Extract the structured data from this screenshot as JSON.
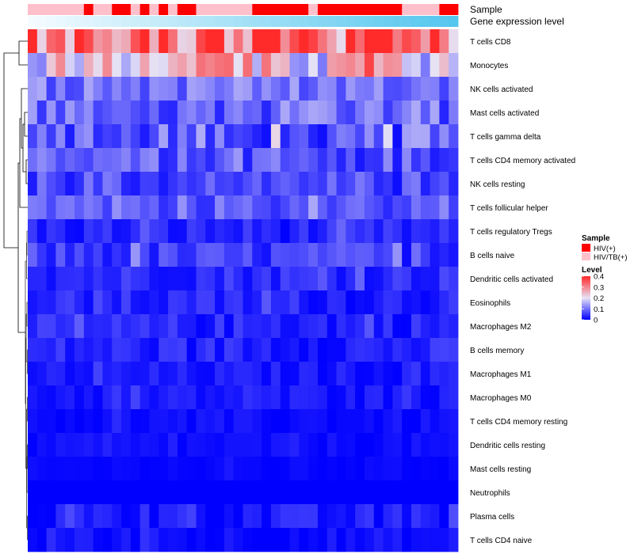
{
  "chart_data": {
    "type": "heatmap",
    "n_samples": 46,
    "annotations": [
      {
        "name": "Sample",
        "kind": "categorical"
      },
      {
        "name": "Gene expression level",
        "kind": "gradient",
        "colors": [
          "#f4fbff",
          "#55c6ee"
        ]
      }
    ],
    "sample_groups": [
      0,
      0,
      0,
      0,
      0,
      0,
      1,
      0,
      0,
      1,
      1,
      0,
      1,
      0,
      1,
      0,
      1,
      1,
      0,
      0,
      0,
      0,
      0,
      0,
      1,
      1,
      1,
      1,
      1,
      1,
      0,
      1,
      1,
      1,
      1,
      1,
      1,
      1,
      1,
      1,
      0,
      0,
      0,
      0,
      1,
      1
    ],
    "rows": [
      "T cells CD8",
      "Monocytes",
      "NK cells activated",
      "Mast cells activated",
      "T cells gamma delta",
      "T cells CD4 memory activated",
      "NK cells resting",
      "T cells follicular helper",
      "T cells regulatory  Tregs",
      "B cells naive",
      "Dendritic cells activated",
      "Eosinophils",
      "Macrophages M2",
      "B cells memory",
      "Macrophages M1",
      "Macrophages M0",
      "T cells CD4 memory resting",
      "Dendritic cells resting",
      "Mast cells resting",
      "Neutrophils",
      "Plasma cells",
      "T cells CD4 naive"
    ],
    "row_means": [
      0.32,
      0.22,
      0.1,
      0.09,
      0.08,
      0.08,
      0.06,
      0.07,
      0.03,
      0.05,
      0.04,
      0.03,
      0.03,
      0.03,
      0.02,
      0.02,
      0.01,
      0.01,
      0.005,
      0.0,
      0.02,
      0.01
    ],
    "row_spread": [
      0.12,
      0.12,
      0.05,
      0.06,
      0.07,
      0.06,
      0.05,
      0.04,
      0.03,
      0.04,
      0.03,
      0.03,
      0.03,
      0.03,
      0.02,
      0.02,
      0.015,
      0.012,
      0.008,
      0.0,
      0.03,
      0.02
    ],
    "legends": {
      "sample": {
        "title": "Sample",
        "entries": [
          {
            "label": "HIV(+)",
            "color": "#ff0000"
          },
          {
            "label": "HIV/TB(+)",
            "color": "#ffc0cb"
          }
        ]
      },
      "level": {
        "title": "Level",
        "ticks": [
          "0.4",
          "0.3",
          "0.2",
          "0.1",
          "0"
        ],
        "range": [
          0,
          0.4
        ]
      }
    }
  }
}
